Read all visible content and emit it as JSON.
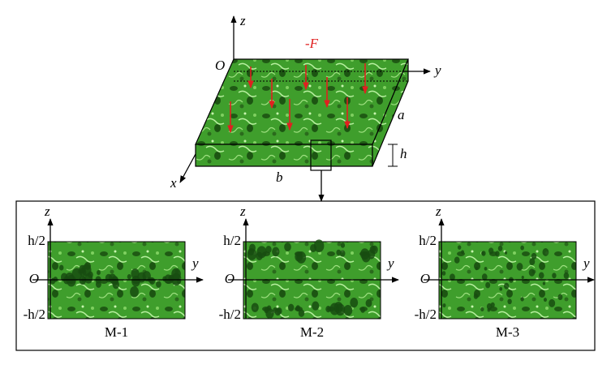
{
  "plate": {
    "force_label": "-F",
    "axes": {
      "x": "x",
      "y": "y",
      "z": "z",
      "origin": "O"
    },
    "dimensions": {
      "a": "a",
      "b": "b",
      "h": "h"
    }
  },
  "panels": [
    {
      "label": "M-1",
      "axes": {
        "z": "z",
        "y": "y",
        "origin": "O"
      },
      "ticks": {
        "top": "h/2",
        "bottom": "-h/2"
      }
    },
    {
      "label": "M-2",
      "axes": {
        "z": "z",
        "y": "y",
        "origin": "O"
      },
      "ticks": {
        "top": "h/2",
        "bottom": "-h/2"
      }
    },
    {
      "label": "M-3",
      "axes": {
        "z": "z",
        "y": "y",
        "origin": "O"
      },
      "ticks": {
        "top": "h/2",
        "bottom": "-h/2"
      }
    }
  ]
}
